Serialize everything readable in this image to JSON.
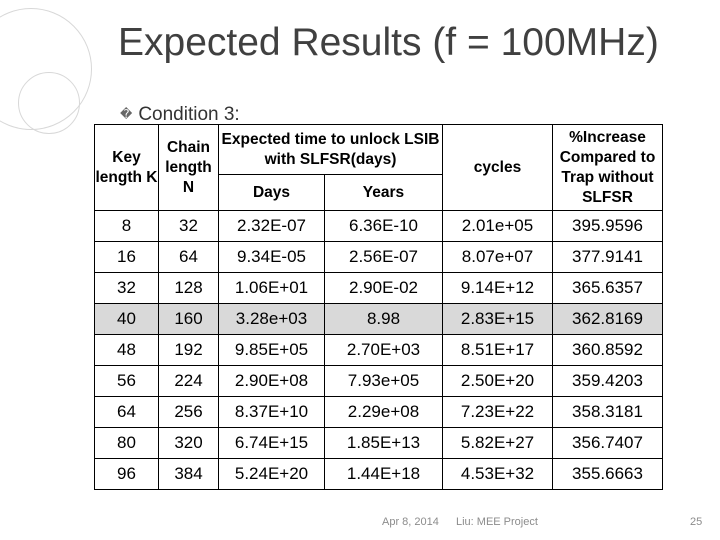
{
  "slide": {
    "title": "Expected Results (f = 100MHz)",
    "subtitle_bullet": "�",
    "subtitle": "Condition 3:"
  },
  "table": {
    "headers": {
      "key_length": "Key length K",
      "chain_length": "Chain length N",
      "expected_time": "Expected time to unlock LSIB with SLFSR(days)",
      "days": "Days",
      "years": "Years",
      "cycles": "cycles",
      "increase": "%Increase Compared to Trap without SLFSR"
    },
    "rows": [
      {
        "k": "8",
        "n": "32",
        "days": "2.32E-07",
        "years": "6.36E-10",
        "cycles": "2.01e+05",
        "increase": "395.9596"
      },
      {
        "k": "16",
        "n": "64",
        "days": "9.34E-05",
        "years": "2.56E-07",
        "cycles": "8.07e+07",
        "increase": "377.9141"
      },
      {
        "k": "32",
        "n": "128",
        "days": "1.06E+01",
        "years": "2.90E-02",
        "cycles": "9.14E+12",
        "increase": "365.6357"
      },
      {
        "k": "40",
        "n": "160",
        "days": "3.28e+03",
        "years": "8.98",
        "cycles": "2.83E+15",
        "increase": "362.8169"
      },
      {
        "k": "48",
        "n": "192",
        "days": "9.85E+05",
        "years": "2.70E+03",
        "cycles": "8.51E+17",
        "increase": "360.8592"
      },
      {
        "k": "56",
        "n": "224",
        "days": "2.90E+08",
        "years": "7.93e+05",
        "cycles": "2.50E+20",
        "increase": "359.4203"
      },
      {
        "k": "64",
        "n": "256",
        "days": "8.37E+10",
        "years": "2.29e+08",
        "cycles": "7.23E+22",
        "increase": "358.3181"
      },
      {
        "k": "80",
        "n": "320",
        "days": "6.74E+15",
        "years": "1.85E+13",
        "cycles": "5.82E+27",
        "increase": "356.7407"
      },
      {
        "k": "96",
        "n": "384",
        "days": "5.24E+20",
        "years": "1.44E+18",
        "cycles": "4.53E+32",
        "increase": "355.6663"
      }
    ]
  },
  "footer": {
    "date": "Apr 8, 2014",
    "project": "Liu: MEE Project",
    "page": "25"
  }
}
